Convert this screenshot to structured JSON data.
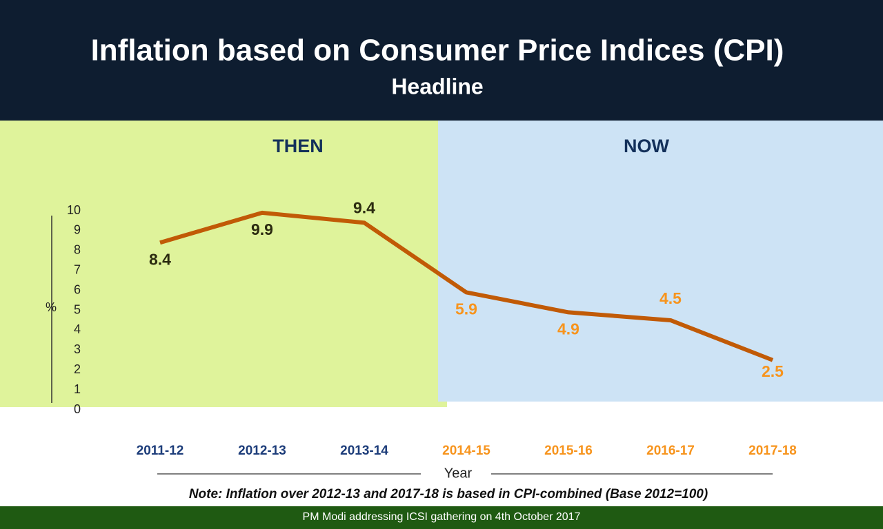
{
  "chart_data": {
    "type": "line",
    "title": "Inflation based on Consumer Price Indices (CPI)",
    "subtitle": "Headline",
    "periods": [
      "THEN",
      "NOW"
    ],
    "categories": [
      "2011-12",
      "2012-13",
      "2013-14",
      "2014-15",
      "2015-16",
      "2016-17",
      "2017-18"
    ],
    "category_colors": [
      "#1d3d7a",
      "#1d3d7a",
      "#1d3d7a",
      "#f7941d",
      "#f7941d",
      "#f7941d",
      "#f7941d"
    ],
    "value_label_colors": [
      "#2b2b10",
      "#2b2b10",
      "#2b2b10",
      "#f7941d",
      "#f7941d",
      "#f7941d",
      "#f7941d"
    ],
    "values": [
      8.4,
      9.9,
      9.4,
      5.9,
      4.9,
      4.5,
      2.5
    ],
    "color": "#c15a06",
    "ylim": [
      0,
      10
    ],
    "yticks": [
      0,
      1,
      2,
      3,
      4,
      5,
      6,
      7,
      8,
      9,
      10
    ],
    "y_label": "%",
    "x_label": "Year",
    "note": "Note: Inflation over 2012-13 and 2017-18 is based in CPI-combined (Base 2012=100)",
    "footer": "PM Modi addressing ICSI gathering on 4th October 2017"
  }
}
